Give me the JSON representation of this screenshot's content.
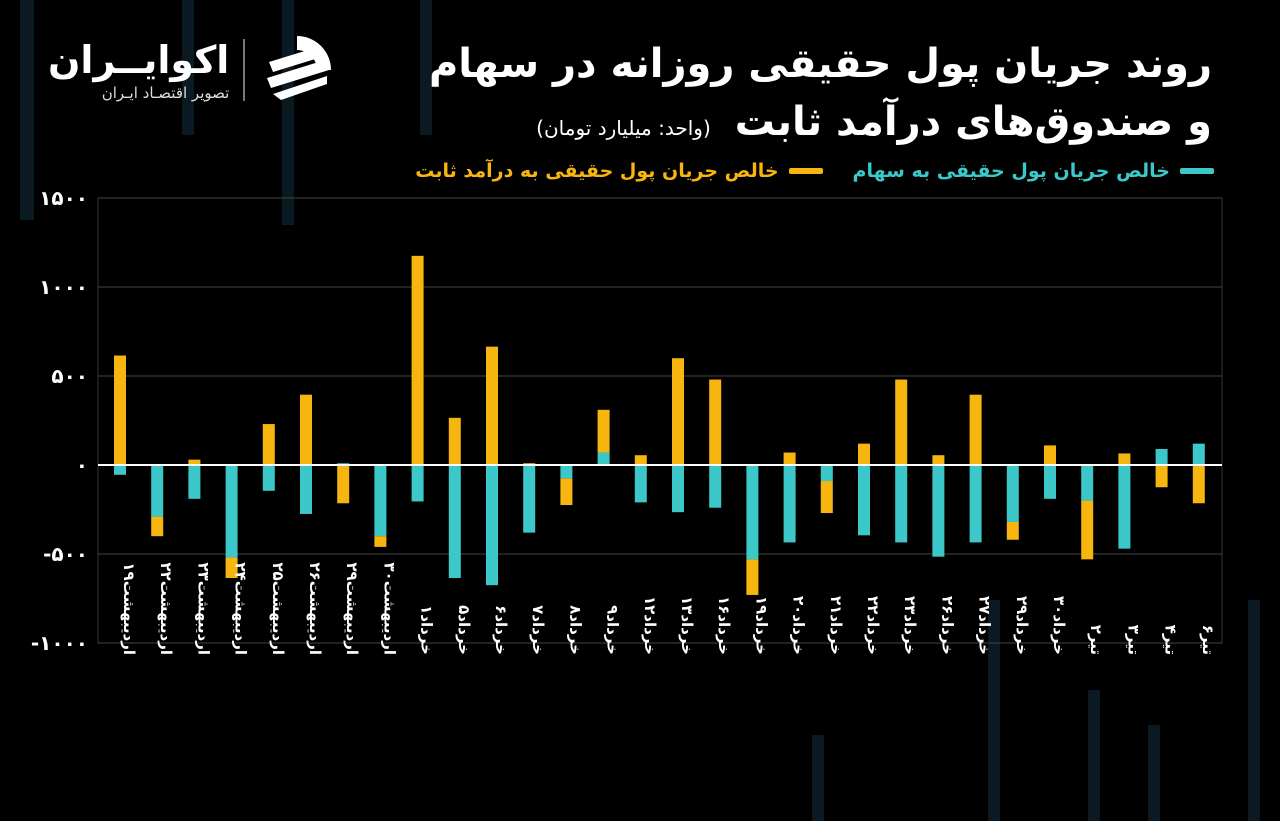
{
  "brand": {
    "name": "اکوایــران",
    "tagline": "تصویر اقتصـاد ایـران"
  },
  "header": {
    "title_line1": "روند جریان پول حقیقی روزانه در سهام",
    "title_line2": "و صندوق‌های درآمد ثابت",
    "unit": "(واحد: میلیارد تومان)"
  },
  "colors": {
    "stocks": "#3cc7c9",
    "fixed_income": "#f7b60f",
    "background": "#000000",
    "grid": "#444444"
  },
  "chart_data": {
    "type": "bar",
    "stacked": true,
    "categories": [
      "اردیبهشت۱۹",
      "اردیبهشت۲۲",
      "اردیبهشت۲۳",
      "اردیبهشت۲۴",
      "اردیبهشت۲۵",
      "اردیبهشت۲۶",
      "اردیبهشت۲۹",
      "اردیبهشت۳۰",
      "خرداد۱",
      "خرداد۵",
      "خرداد۶",
      "خرداد۷",
      "خرداد۸",
      "خرداد۹",
      "خرداد۱۲",
      "خرداد۱۳",
      "خرداد۱۶",
      "خرداد۱۹",
      "خرداد۲۰",
      "خرداد۲۱",
      "خرداد۲۲",
      "خرداد۲۳",
      "خرداد۲۶",
      "خرداد۲۷",
      "خرداد۲۹",
      "خرداد۳۰",
      "تیر۲",
      "تیر۳",
      "تیر۴",
      "تیر۶"
    ],
    "series": [
      {
        "name": "خالص جریان پول حقیقی به سهام",
        "values": [
          -55,
          -290,
          -190,
          -520,
          -145,
          -275,
          10,
          -400,
          -205,
          -635,
          -675,
          -380,
          -75,
          70,
          -210,
          -265,
          -240,
          -530,
          -435,
          -90,
          -395,
          -435,
          -515,
          -435,
          -320,
          -190,
          -200,
          -470,
          90,
          120
        ]
      },
      {
        "name": "خالص جریان پول حقیقی به درآمد ثابت",
        "values": [
          615,
          -110,
          30,
          -115,
          230,
          395,
          -215,
          -60,
          1175,
          265,
          665,
          10,
          -150,
          240,
          55,
          600,
          480,
          -200,
          70,
          -180,
          120,
          480,
          55,
          395,
          -100,
          110,
          -330,
          65,
          -125,
          -215
        ]
      }
    ],
    "ylim": [
      -1000,
      1500
    ],
    "yticks": [
      -1000,
      -500,
      0,
      500,
      1000,
      1500
    ],
    "ytick_labels": [
      "-۱۰۰۰",
      "-۵۰۰",
      "۰",
      "۵۰۰",
      "۱۰۰۰",
      "۱۵۰۰"
    ],
    "grid": true,
    "legend_position": "top-right"
  }
}
